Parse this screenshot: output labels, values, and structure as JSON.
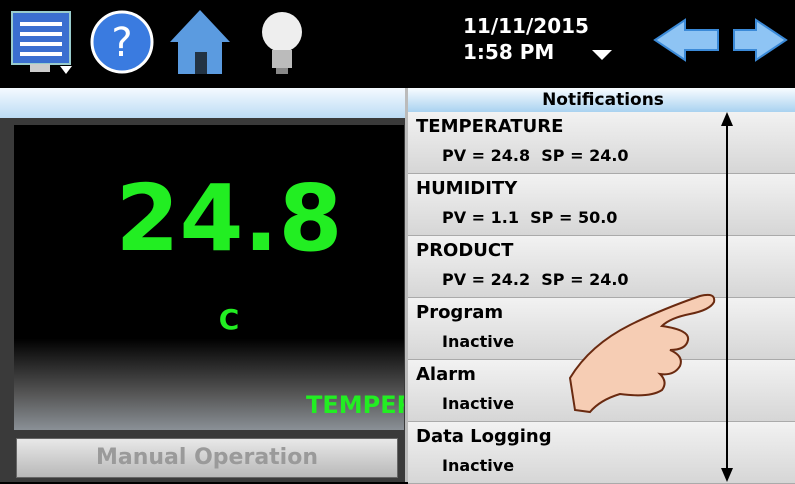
{
  "header": {
    "date": "11/11/2015",
    "time": "1:58 PM"
  },
  "display": {
    "value": "24.8",
    "unit": "C",
    "label": "TEMPERATURE",
    "button": "Manual Operation"
  },
  "notifications": {
    "title": "Notifications",
    "items": [
      {
        "title": "TEMPERATURE",
        "detail": "PV = 24.8  SP = 24.0"
      },
      {
        "title": "HUMIDITY",
        "detail": "PV = 1.1  SP = 50.0"
      },
      {
        "title": "PRODUCT",
        "detail": "PV = 24.2  SP = 24.0"
      },
      {
        "title": "Program",
        "detail": "Inactive"
      },
      {
        "title": "Alarm",
        "detail": "Inactive"
      },
      {
        "title": "Data Logging",
        "detail": "Inactive"
      }
    ]
  }
}
